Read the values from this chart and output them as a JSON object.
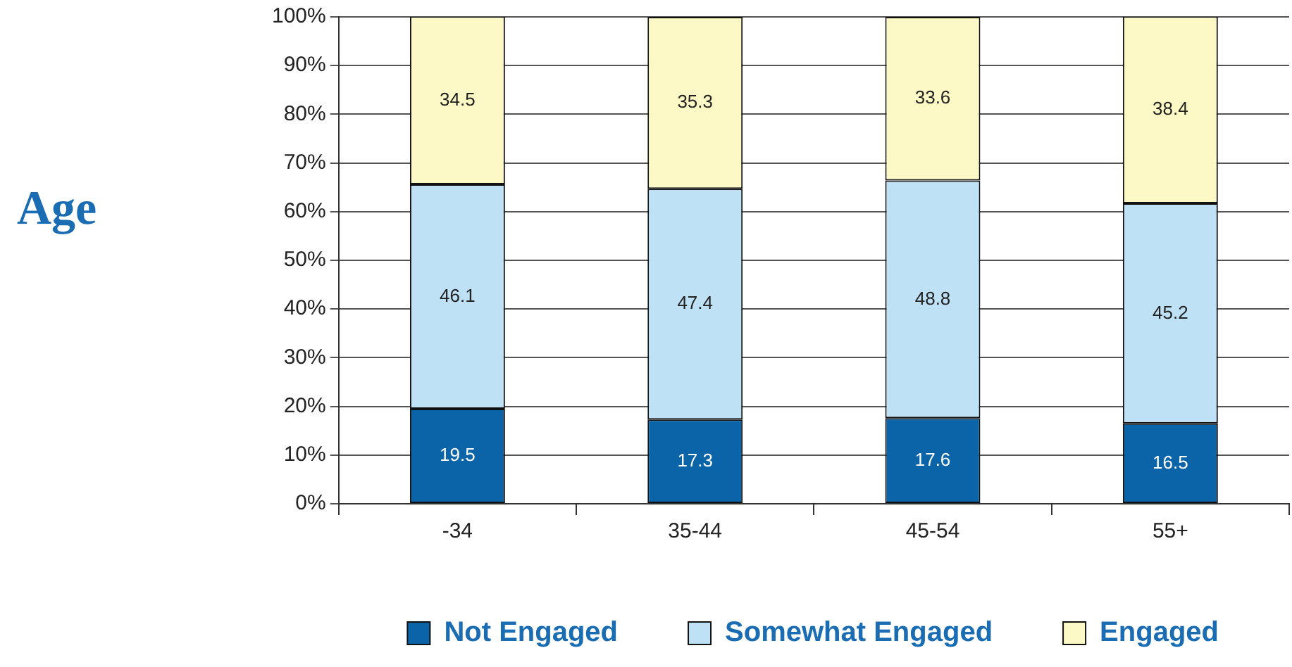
{
  "chart_data": {
    "type": "bar",
    "title": "Age",
    "stacked": true,
    "categories": [
      "-34",
      "35-44",
      "45-54",
      "55+"
    ],
    "series": [
      {
        "name": "Not Engaged",
        "color": "#0b64a8",
        "values": [
          19.5,
          17.3,
          17.6,
          16.5
        ]
      },
      {
        "name": "Somewhat Engaged",
        "color": "#bfe1f6",
        "values": [
          46.1,
          47.4,
          48.8,
          45.2
        ]
      },
      {
        "name": "Engaged",
        "color": "#fdf9c6",
        "values": [
          34.5,
          35.3,
          33.6,
          38.4
        ]
      }
    ],
    "ylim": [
      0,
      100
    ],
    "yticks": [
      {
        "value": 0,
        "label": "0%"
      },
      {
        "value": 10,
        "label": "10%"
      },
      {
        "value": 20,
        "label": "20%"
      },
      {
        "value": 30,
        "label": "30%"
      },
      {
        "value": 40,
        "label": "40%"
      },
      {
        "value": 50,
        "label": "50%"
      },
      {
        "value": 60,
        "label": "60%"
      },
      {
        "value": 70,
        "label": "70%"
      },
      {
        "value": 80,
        "label": "80%"
      },
      {
        "value": 90,
        "label": "90%"
      },
      {
        "value": 100,
        "label": "100%"
      }
    ],
    "grid": "y",
    "legend": "bottom",
    "data_labels": true
  }
}
